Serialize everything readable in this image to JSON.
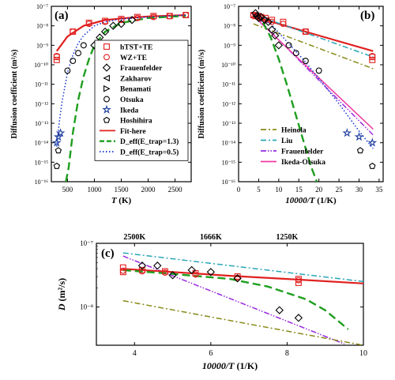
{
  "chart_data": [
    {
      "panel": "(a)",
      "type": "scatter",
      "xlabel_main": "T",
      "xlabel_unit": " (K)",
      "ylabel": "Diffusion coefficient (m²/s)",
      "xlim": [
        200,
        2800
      ],
      "ylim_log10": [
        -16,
        -7
      ],
      "xticks": [
        500,
        1000,
        1500,
        2000,
        2500
      ],
      "yticks_log10": [
        -16,
        -15,
        -14,
        -13,
        -12,
        -11,
        -10,
        -9,
        -8,
        -7
      ],
      "ytick_labels": [
        "10⁻¹⁶",
        "10⁻¹⁵",
        "10⁻¹⁴",
        "10⁻¹³",
        "10⁻¹²",
        "10⁻¹¹",
        "10⁻¹⁰",
        "10⁻⁹",
        "10⁻⁸",
        "10⁻⁷"
      ],
      "legend": [
        {
          "name": "hTST+TE",
          "kind": "marker",
          "marker": "square",
          "color": "#e02020"
        },
        {
          "name": "WZ+TE",
          "kind": "marker",
          "marker": "circle",
          "color": "#e02020"
        },
        {
          "name": "Frauenfelder",
          "kind": "marker",
          "marker": "diamond",
          "color": "#000000"
        },
        {
          "name": "Zakharov",
          "kind": "marker",
          "marker": "tri-left",
          "color": "#000000"
        },
        {
          "name": "Benamati",
          "kind": "marker",
          "marker": "tri-right",
          "color": "#000000"
        },
        {
          "name": "Otsuka",
          "kind": "marker",
          "marker": "circle",
          "color": "#000000"
        },
        {
          "name": "Ikeda",
          "kind": "marker",
          "marker": "star",
          "color": "#1f3f9f"
        },
        {
          "name": "Hoshihira",
          "kind": "marker",
          "marker": "pentagon",
          "color": "#000000"
        },
        {
          "name": "Fit-here",
          "kind": "line",
          "dash": "solid",
          "color": "#e02020"
        },
        {
          "name": "D_eff(E_trap=1.3)",
          "kind": "line",
          "dash": "dashed",
          "color": "#1e9e1e"
        },
        {
          "name": "D_eff(E_trap=0.5)",
          "kind": "line",
          "dash": "dotted",
          "color": "#1030d0"
        }
      ],
      "series": [
        {
          "name": "hTST+TE",
          "marker": "square",
          "color": "#e02020",
          "x": [
            300,
            300,
            600,
            900,
            1200,
            1500,
            1800,
            2100,
            2400,
            2700
          ],
          "y_log10": [
            -9.75,
            -9.6,
            -8.3,
            -7.85,
            -7.75,
            -7.65,
            -7.55,
            -7.5,
            -7.5,
            -7.45
          ]
        },
        {
          "name": "WZ+TE",
          "marker": "circle",
          "color": "#e02020",
          "x": [
            300,
            600,
            900,
            1200,
            1500,
            1800,
            2100,
            2400,
            2700
          ],
          "y_log10": [
            -9.55,
            -8.3,
            -7.9,
            -7.8,
            -7.7,
            -7.6,
            -7.55,
            -7.5,
            -7.45
          ]
        },
        {
          "name": "Frauenfelder",
          "marker": "diamond",
          "color": "#000000",
          "x": [
            1000,
            1100,
            1200,
            1350,
            1500,
            1700
          ],
          "y_log10": [
            -9.0,
            -8.6,
            -8.3,
            -8.0,
            -7.9,
            -7.7
          ]
        },
        {
          "name": "Otsuka",
          "marker": "circle",
          "color": "#000000",
          "x": [
            500,
            600,
            700,
            800
          ],
          "y_log10": [
            -10.3,
            -9.8,
            -9.4,
            -9.0
          ]
        },
        {
          "name": "Ikeda",
          "marker": "star",
          "color": "#1f3f9f",
          "x": [
            300,
            330,
            370
          ],
          "y_log10": [
            -14.0,
            -13.7,
            -13.5
          ]
        },
        {
          "name": "Hoshihira",
          "marker": "pentagon",
          "color": "#000000",
          "x": [
            300,
            330
          ],
          "y_log10": [
            -15.2,
            -14.4
          ]
        }
      ],
      "lines": [
        {
          "name": "Fit-here",
          "dash": "solid",
          "color": "#e02020",
          "x": [
            300,
            500,
            800,
            1200,
            1600,
            2000,
            2400,
            2700
          ],
          "y_log10": [
            -9.3,
            -8.55,
            -8.0,
            -7.7,
            -7.6,
            -7.52,
            -7.48,
            -7.45
          ]
        },
        {
          "name": "D_eff(E_trap=1.3)",
          "dash": "dashed",
          "color": "#1e9e1e",
          "x": [
            470,
            520,
            600,
            700,
            800,
            900,
            1000,
            1200,
            1500,
            2000,
            2500,
            2700
          ],
          "y_log10": [
            -16,
            -15.3,
            -13.5,
            -11.8,
            -10.6,
            -9.7,
            -9.0,
            -8.3,
            -7.85,
            -7.6,
            -7.52,
            -7.5
          ]
        },
        {
          "name": "D_eff(E_trap=0.5)",
          "dash": "dotted",
          "color": "#1030d0",
          "x": [
            300,
            350,
            400,
            500,
            600,
            700,
            800,
            1000,
            1200,
            1500,
            2000,
            2700
          ],
          "y_log10": [
            -14.2,
            -12.9,
            -11.9,
            -10.4,
            -9.5,
            -8.9,
            -8.5,
            -8.0,
            -7.8,
            -7.65,
            -7.55,
            -7.45
          ]
        }
      ]
    },
    {
      "panel": "(b)",
      "type": "line",
      "xlabel_main": "10000/T",
      "xlabel_unit": " (1/K)",
      "ylabel": "Diffusion coefficient (m²/s)",
      "xlim": [
        0,
        36
      ],
      "ylim_log10": [
        -16,
        -7
      ],
      "xticks": [
        0,
        5,
        10,
        15,
        20,
        25,
        30,
        35
      ],
      "yticks_log10": [
        -16,
        -15,
        -14,
        -13,
        -12,
        -11,
        -10,
        -9,
        -8,
        -7
      ],
      "ytick_labels": [
        "10⁻¹⁶",
        "10⁻¹⁵",
        "10⁻¹⁴",
        "10⁻¹³",
        "10⁻¹²",
        "10⁻¹¹",
        "10⁻¹⁰",
        "10⁻⁹",
        "10⁻⁸",
        "10⁻⁷"
      ],
      "legend": [
        {
          "name": "Heinola",
          "dash": "dashdot",
          "color": "#8a8a1a"
        },
        {
          "name": "Liu",
          "dash": "dashdot",
          "color": "#2aa6b8"
        },
        {
          "name": "Frauenfelder",
          "dash": "dashdotdot",
          "color": "#9a2ae0"
        },
        {
          "name": "Ikeda-Otsuka",
          "dash": "solid",
          "color": "#ee3aa0"
        }
      ],
      "lines": [
        {
          "name": "Fit-here",
          "dash": "solid",
          "color": "#e02020",
          "x": [
            3.7,
            10,
            20,
            33.5
          ],
          "y_log10": [
            -7.5,
            -7.9,
            -8.5,
            -9.3
          ]
        },
        {
          "name": "Heinola",
          "dash": "dashdot",
          "color": "#8a8a1a",
          "x": [
            3.7,
            33.5
          ],
          "y_log10": [
            -7.9,
            -10.2
          ]
        },
        {
          "name": "Liu",
          "dash": "dashdot",
          "color": "#2aa6b8",
          "x": [
            3.7,
            33.5
          ],
          "y_log10": [
            -7.4,
            -9.6
          ]
        },
        {
          "name": "Frauenfelder",
          "dash": "dashdotdot",
          "color": "#9a2ae0",
          "x": [
            3.7,
            33.5
          ],
          "y_log10": [
            -7.4,
            -13.6
          ]
        },
        {
          "name": "Ikeda-Otsuka",
          "dash": "solid",
          "color": "#ee3aa0",
          "x": [
            3.7,
            33.5
          ],
          "y_log10": [
            -7.5,
            -13.3
          ]
        },
        {
          "name": "D_eff(E_trap=1.3)",
          "dash": "dashed",
          "color": "#1e9e1e",
          "x": [
            3.7,
            6,
            8,
            10,
            12,
            14,
            16,
            18,
            19.5
          ],
          "y_log10": [
            -7.5,
            -7.8,
            -8.6,
            -9.7,
            -11.0,
            -12.4,
            -13.8,
            -15.2,
            -16
          ]
        },
        {
          "name": "D_eff(E_trap=0.5)",
          "dash": "dotted",
          "color": "#1030d0",
          "x": [
            3.7,
            8,
            12,
            16,
            20,
            25,
            30,
            33.5
          ],
          "y_log10": [
            -7.45,
            -7.9,
            -8.8,
            -9.7,
            -10.7,
            -12.0,
            -13.4,
            -14.3
          ]
        }
      ],
      "series": [
        {
          "name": "hTST+TE",
          "marker": "square",
          "color": "#e02020",
          "x": [
            3.7,
            4.2,
            4.8,
            5.6,
            6.7,
            8.3,
            11.1,
            16.7,
            33.3,
            33.3
          ],
          "y_log10": [
            -7.45,
            -7.5,
            -7.5,
            -7.55,
            -7.6,
            -7.7,
            -7.8,
            -8.3,
            -9.6,
            -9.75
          ]
        },
        {
          "name": "WZ+TE",
          "marker": "circle",
          "color": "#e02020",
          "x": [
            3.7,
            4.2,
            4.8,
            5.6,
            6.7,
            8.3,
            11.1,
            16.7,
            33.3
          ],
          "y_log10": [
            -7.45,
            -7.5,
            -7.55,
            -7.6,
            -7.7,
            -7.8,
            -7.9,
            -8.3,
            -9.55
          ]
        },
        {
          "name": "Frauenfelder",
          "marker": "diamond",
          "color": "#000000",
          "x": [
            4.2,
            4.6,
            5.0,
            5.6,
            6.5,
            7.4,
            8.3,
            9.1,
            10.0
          ],
          "y_log10": [
            -7.35,
            -7.5,
            -7.6,
            -7.55,
            -7.7,
            -7.8,
            -8.2,
            -8.5,
            -9.0
          ]
        },
        {
          "name": "Otsuka",
          "marker": "circle",
          "color": "#000000",
          "x": [
            12.5,
            14.3,
            16.7,
            20.0
          ],
          "y_log10": [
            -9.0,
            -9.4,
            -9.8,
            -10.3
          ]
        },
        {
          "name": "Ikeda",
          "marker": "star",
          "color": "#1f3f9f",
          "x": [
            27.0,
            30.0,
            33.3
          ],
          "y_log10": [
            -13.5,
            -13.7,
            -14.0
          ]
        },
        {
          "name": "Hoshihira",
          "marker": "pentagon",
          "color": "#000000",
          "x": [
            30.3,
            33.3
          ],
          "y_log10": [
            -14.4,
            -15.2
          ]
        }
      ]
    },
    {
      "panel": "(c)",
      "type": "line",
      "xlabel_main": "10000/T",
      "xlabel_unit": " (1/K)",
      "ylabel_main": "D",
      "ylabel_unit": " (m²/s)",
      "xlim": [
        3,
        10
      ],
      "ylim_log10": [
        -8.6,
        -7
      ],
      "xticks": [
        4,
        6,
        8,
        10
      ],
      "yticks_log10": [
        -8,
        -7
      ],
      "ytick_labels": [
        "10⁻⁸",
        "10⁻⁷"
      ],
      "top_ticks": [
        {
          "x": 4.0,
          "label": "2500K"
        },
        {
          "x": 6.0,
          "label": "1666K"
        },
        {
          "x": 8.0,
          "label": "1250K"
        }
      ],
      "lines": [
        {
          "name": "Liu",
          "dash": "dashdot",
          "color": "#2aa6b8",
          "x": [
            3.7,
            10
          ],
          "y_log10": [
            -7.15,
            -7.6
          ]
        },
        {
          "name": "Frauenfelder",
          "dash": "dashdotdot",
          "color": "#9a2ae0",
          "x": [
            3.7,
            9.5
          ],
          "y_log10": [
            -7.2,
            -8.58
          ]
        },
        {
          "name": "Fit-here",
          "dash": "solid",
          "color": "#e02020",
          "x": [
            3.7,
            5,
            6.5,
            8,
            10
          ],
          "y_log10": [
            -7.4,
            -7.45,
            -7.51,
            -7.56,
            -7.63
          ]
        },
        {
          "name": "D_eff(E_trap=1.3)",
          "dash": "dashed",
          "color": "#1e9e1e",
          "x": [
            3.7,
            5,
            6.5,
            7.5,
            8.5,
            9.0,
            9.3,
            9.6
          ],
          "y_log10": [
            -7.42,
            -7.48,
            -7.56,
            -7.68,
            -7.88,
            -8.05,
            -8.2,
            -8.35
          ]
        },
        {
          "name": "Heinola",
          "dash": "dashdot",
          "color": "#8a8a1a",
          "x": [
            3.7,
            10
          ],
          "y_log10": [
            -7.9,
            -8.6
          ]
        }
      ],
      "series": [
        {
          "name": "hTST+TE",
          "marker": "square",
          "color": "#e02020",
          "x": [
            3.7,
            3.7,
            4.2,
            4.8,
            5.6,
            6.7,
            8.3,
            8.3
          ],
          "y_log10": [
            -7.38,
            -7.45,
            -7.42,
            -7.44,
            -7.47,
            -7.52,
            -7.56,
            -7.62
          ]
        },
        {
          "name": "WZ+TE",
          "marker": "circle",
          "color": "#e02020",
          "x": [
            3.7,
            4.2,
            4.8,
            5.6,
            6.7,
            8.3
          ],
          "y_log10": [
            -7.43,
            -7.44,
            -7.46,
            -7.49,
            -7.54,
            -7.58
          ]
        },
        {
          "name": "Frauenfelder",
          "marker": "diamond",
          "color": "#000000",
          "x": [
            4.2,
            4.6,
            5.0,
            5.5,
            6.0,
            6.7,
            7.8,
            8.3
          ],
          "y_log10": [
            -7.35,
            -7.35,
            -7.5,
            -7.42,
            -7.45,
            -7.55,
            -8.05,
            -8.17
          ]
        }
      ]
    }
  ]
}
